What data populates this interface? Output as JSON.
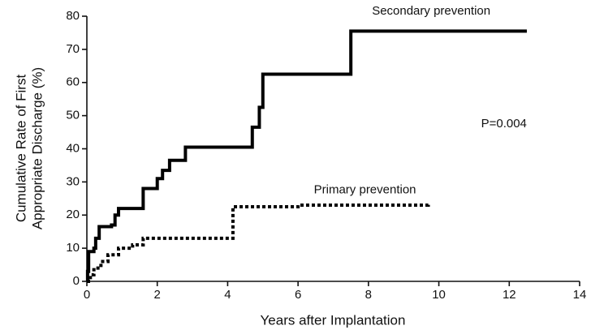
{
  "chart_data": {
    "type": "line",
    "drawstyle": "steps-post",
    "xlabel": "Years after Implantation",
    "ylabel": [
      "Cumulative Rate of First",
      "Appropriate Discharge (%)"
    ],
    "xlim": [
      0,
      14
    ],
    "xticks": [
      0,
      2,
      4,
      6,
      8,
      10,
      12,
      14
    ],
    "ylim": [
      0,
      80
    ],
    "yticks": [
      0,
      10,
      20,
      30,
      40,
      50,
      60,
      70,
      80
    ],
    "grid": false,
    "series": [
      {
        "name": "Secondary prevention",
        "color": "#000000",
        "dash": "solid",
        "x": [
          0,
          0.02,
          0.05,
          0.2,
          0.25,
          0.35,
          0.7,
          0.8,
          0.9,
          1.6,
          2.0,
          2.15,
          2.35,
          2.8,
          4.7,
          4.9,
          5.0,
          7.5,
          12.5
        ],
        "values": [
          0,
          3,
          9,
          10,
          13,
          16.5,
          17,
          20,
          22,
          28,
          31,
          33.5,
          36.5,
          40.5,
          46.5,
          52.5,
          62.5,
          75.5,
          75.5
        ]
      },
      {
        "name": "Primary prevention",
        "color": "#000000",
        "dash": "dotted",
        "x": [
          0,
          0.1,
          0.2,
          0.4,
          0.6,
          0.9,
          1.3,
          1.6,
          4.1,
          4.15,
          6,
          9.7
        ],
        "values": [
          0,
          2,
          4,
          6,
          8,
          10,
          11,
          13,
          13,
          22.5,
          23,
          23.5
        ]
      }
    ],
    "annotations": [
      "P=0.004"
    ]
  }
}
